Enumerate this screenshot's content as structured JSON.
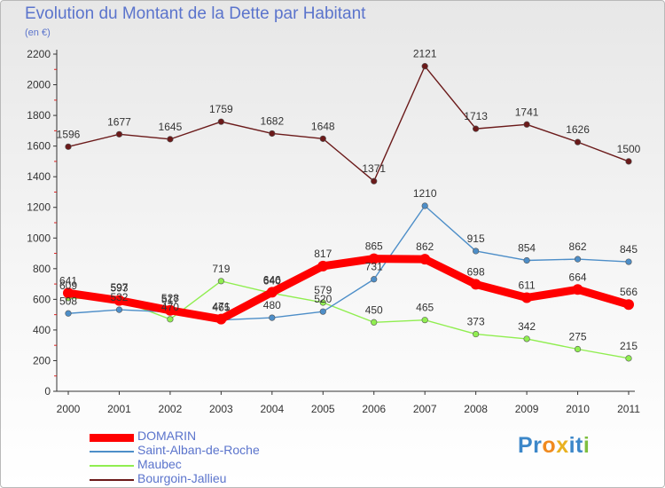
{
  "chart_data": {
    "type": "line",
    "title": "Evolution du Montant de la Dette par Habitant",
    "subtitle": "(en €)",
    "x": [
      "2000",
      "2001",
      "2002",
      "2003",
      "2004",
      "2005",
      "2006",
      "2007",
      "2008",
      "2009",
      "2010",
      "2011"
    ],
    "ylim": [
      0,
      2200
    ],
    "yticks": [
      0,
      200,
      400,
      600,
      800,
      1000,
      1200,
      1400,
      1600,
      1800,
      2000,
      2200
    ],
    "grid": false,
    "legend_position": "bottom-left",
    "series": [
      {
        "name": "DOMARIN",
        "color": "#ff0000",
        "values": [
          641,
          593,
          528,
          471,
          646,
          817,
          865,
          862,
          698,
          611,
          664,
          566
        ]
      },
      {
        "name": "Saint-Alban-de-Roche",
        "color": "#4d8ec8",
        "values": [
          508,
          532,
          517,
          465,
          480,
          520,
          731,
          1210,
          915,
          854,
          862,
          845
        ]
      },
      {
        "name": "Maubec",
        "color": "#90ee50",
        "values": [
          609,
          597,
          470,
          719,
          640,
          579,
          450,
          465,
          373,
          342,
          275,
          215
        ]
      },
      {
        "name": "Bourgoin-Jallieu",
        "color": "#6b1a1a",
        "values": [
          1596,
          1677,
          1645,
          1759,
          1682,
          1648,
          1371,
          2121,
          1713,
          1741,
          1626,
          1500
        ]
      }
    ]
  },
  "logo": {
    "text": "Proxiti"
  }
}
